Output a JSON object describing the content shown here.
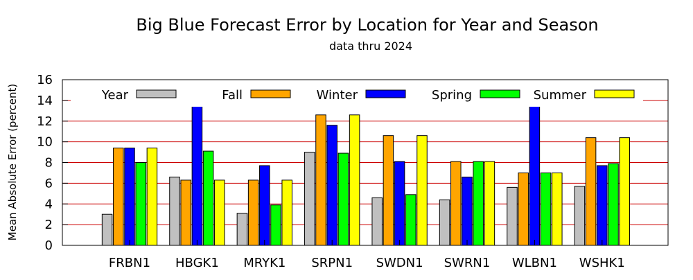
{
  "chart_data": {
    "type": "bar",
    "title": "Big Blue Forecast Error by Location for Year and Season",
    "subtitle": "data thru 2024",
    "xlabel": "",
    "ylabel": "Mean Absolute Error (percent)",
    "ylim": [
      0,
      16
    ],
    "yticks": [
      0,
      2,
      4,
      6,
      8,
      10,
      12,
      14,
      16
    ],
    "grid": true,
    "legend_position": "top",
    "categories": [
      "FRBN1",
      "HBGK1",
      "MRYK1",
      "SRPN1",
      "SWDN1",
      "SWRN1",
      "WLBN1",
      "WSHK1"
    ],
    "series": [
      {
        "name": "Year",
        "color": "#c0c0c0",
        "values": [
          3.0,
          6.6,
          3.1,
          9.0,
          4.6,
          4.4,
          5.6,
          5.7
        ]
      },
      {
        "name": "Fall",
        "color": "#ffa500",
        "values": [
          9.4,
          6.3,
          6.3,
          12.6,
          10.6,
          8.1,
          7.0,
          10.4
        ]
      },
      {
        "name": "Winter",
        "color": "#0000ff",
        "values": [
          9.4,
          14.1,
          7.7,
          11.6,
          8.1,
          6.6,
          13.7,
          7.7
        ]
      },
      {
        "name": "Spring",
        "color": "#00ff00",
        "values": [
          8.0,
          9.1,
          3.9,
          8.9,
          4.9,
          8.1,
          7.0,
          7.9
        ]
      },
      {
        "name": "Summer",
        "color": "#ffff00",
        "values": [
          9.4,
          6.3,
          6.3,
          12.6,
          10.6,
          8.1,
          7.0,
          10.4
        ]
      }
    ]
  }
}
